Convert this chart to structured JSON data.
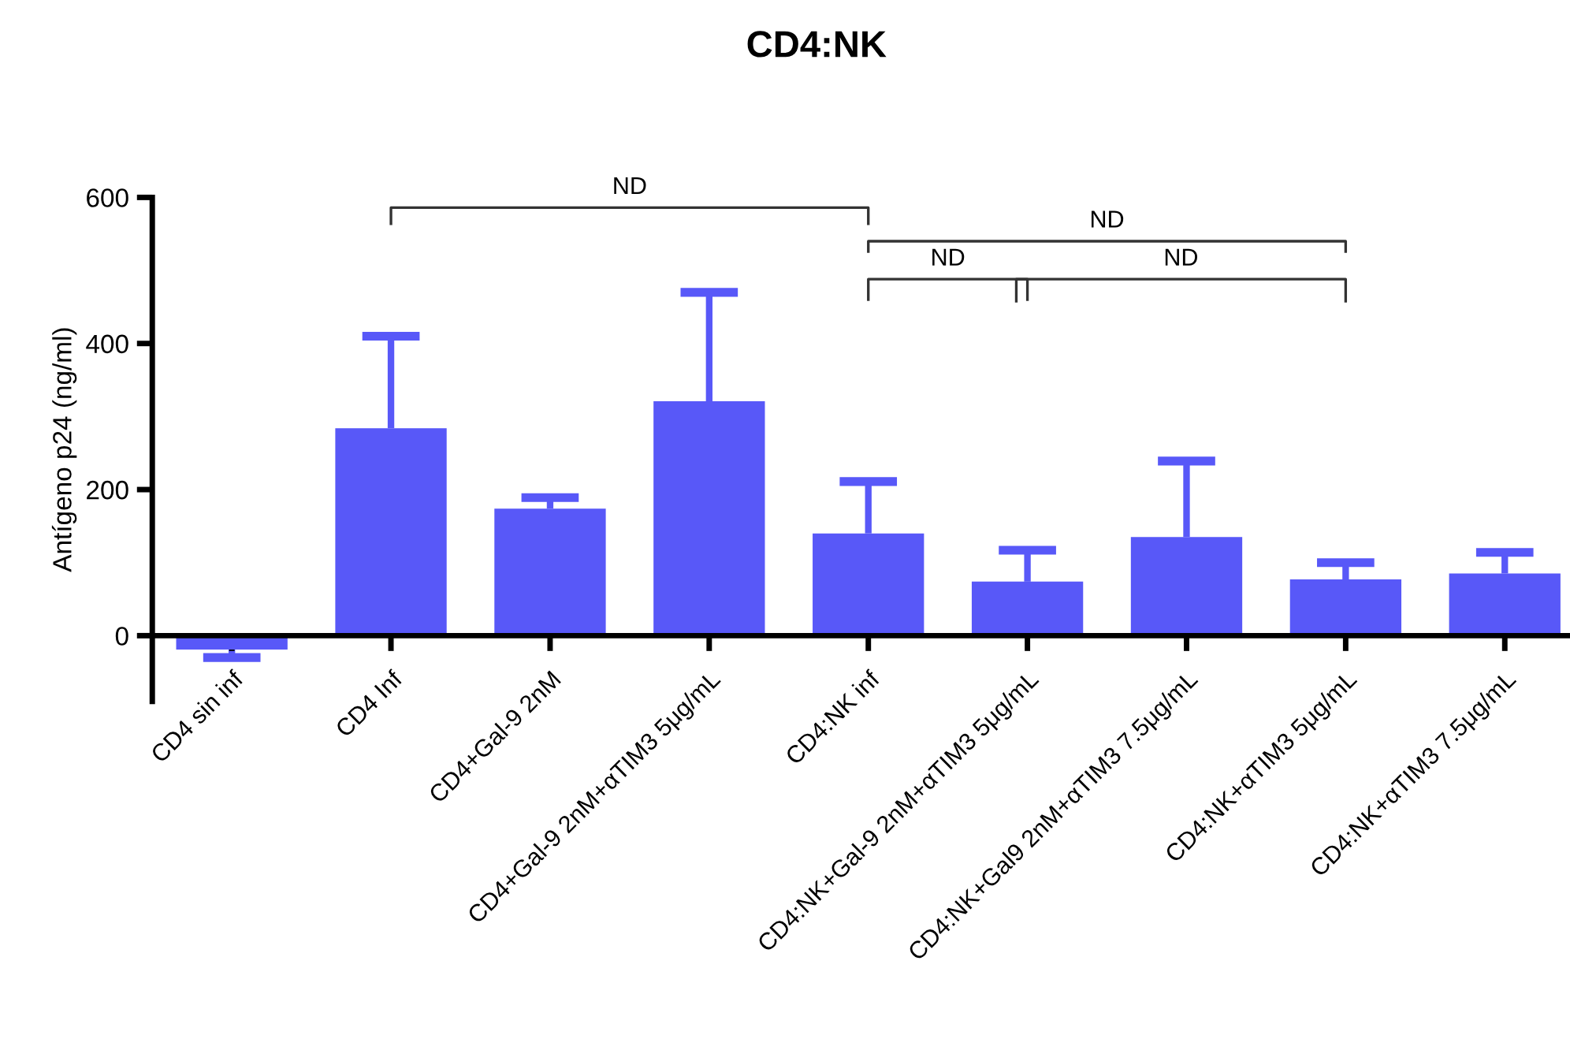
{
  "chart_data": {
    "type": "bar",
    "title": "CD4:NK",
    "ylabel": "Antígeno p24 (ng/ml)",
    "categories": [
      "CD4 sin inf",
      "CD4 Inf",
      "CD4+Gal-9 2nM",
      "CD4+Gal-9 2nM+αTIM3 5μg/mL",
      "CD4:NK inf",
      "CD4:NK+Gal-9 2nM+αTIM3 5μg/mL",
      "CD4:NK+Gal9 2nM+αTIM3 7.5μg/mL",
      "CD4:NK+αTIM3 5μg/mL",
      "CD4:NK+αTIM3 7.5μg/mL"
    ],
    "values": [
      -19,
      284,
      174,
      321,
      140,
      74,
      135,
      77,
      85
    ],
    "errors": [
      [
        -30,
        -19
      ],
      [
        284,
        410
      ],
      [
        174,
        189
      ],
      [
        321,
        470
      ],
      [
        140,
        211
      ],
      [
        74,
        117
      ],
      [
        135,
        239
      ],
      [
        77,
        100
      ],
      [
        85,
        114
      ]
    ],
    "color": "#5858f8",
    "ylim": [
      -90,
      600
    ],
    "yticks": [
      0,
      200,
      400,
      600
    ],
    "grid": false,
    "legend": false,
    "annotations": [
      "ND",
      "ND",
      "ND",
      "ND"
    ]
  }
}
